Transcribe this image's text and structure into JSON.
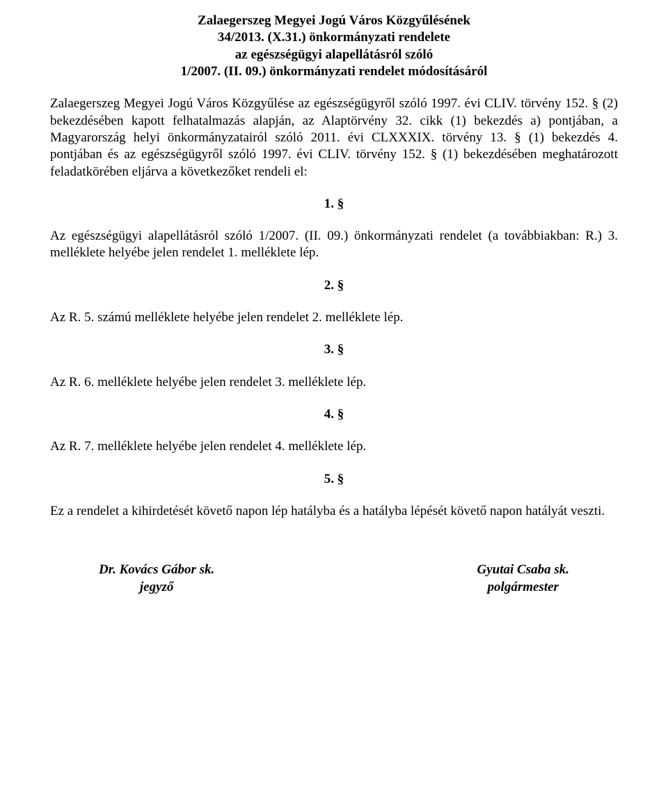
{
  "title": {
    "line1": "Zalaegerszeg Megyei Jogú Város Közgyűlésének",
    "line2": "34/2013. (X.31.) önkormányzati rendelete",
    "line3": "az egészségügyi alapellátásról szóló",
    "line4": "1/2007. (II. 09.) önkormányzati rendelet módosításáról"
  },
  "preamble": "Zalaegerszeg Megyei Jogú Város Közgyűlése az egészségügyről szóló 1997. évi CLIV. törvény 152. § (2) bekezdésében kapott felhatalmazás alapján, az Alaptörvény 32. cikk (1) bekezdés a) pontjában, a Magyarország helyi önkormányzatairól szóló 2011. évi CLXXXIX. törvény 13. § (1) bekezdés 4. pontjában és az egészségügyről szóló 1997. évi CLIV. törvény 152. § (1) bekezdésében meghatározott feladatkörében eljárva a következőket rendeli el:",
  "sections": {
    "s1": {
      "num": "1. §",
      "text": "Az egészségügyi alapellátásról szóló 1/2007. (II. 09.) önkormányzati rendelet (a továbbiakban: R.) 3. melléklete helyébe jelen rendelet 1. melléklete lép."
    },
    "s2": {
      "num": "2. §",
      "text": "Az R. 5. számú melléklete helyébe jelen rendelet 2. melléklete lép."
    },
    "s3": {
      "num": "3. §",
      "text": "Az R. 6. melléklete helyébe jelen rendelet 3. melléklete lép."
    },
    "s4": {
      "num": "4. §",
      "text": "Az R. 7. melléklete helyébe jelen rendelet 4. melléklete lép."
    },
    "s5": {
      "num": "5. §",
      "text": "Ez a rendelet a kihirdetését követő napon lép hatályba és a hatályba lépését követő napon hatályát veszti."
    }
  },
  "signatures": {
    "left": {
      "name": "Dr. Kovács Gábor  sk.",
      "role": "jegyző"
    },
    "right": {
      "name": "Gyutai Csaba sk.",
      "role": "polgármester"
    }
  }
}
